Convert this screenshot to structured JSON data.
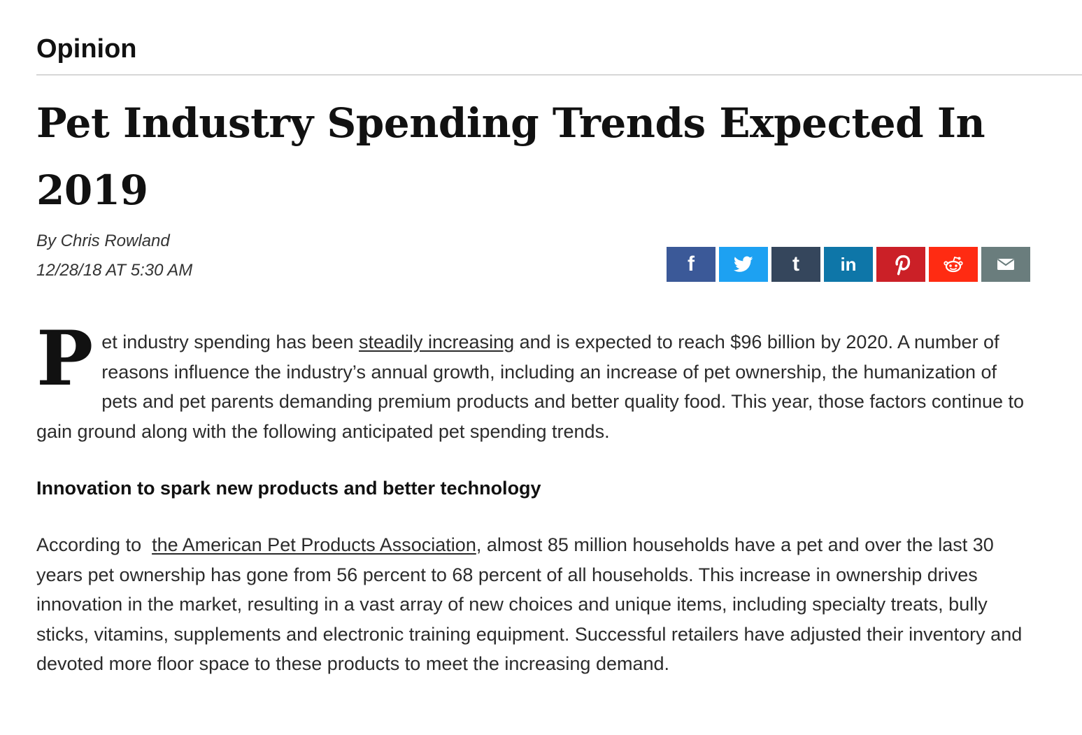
{
  "section": "Opinion",
  "headline": "Pet Industry Spending Trends Expected In 2019",
  "byline": "By Chris Rowland",
  "dateline": "12/28/18 AT 5:30 AM",
  "share": {
    "facebook": {
      "glyph": "f",
      "color": "#3b5998"
    },
    "twitter": {
      "color": "#1da1f2"
    },
    "tumblr": {
      "glyph": "t",
      "color": "#35465c"
    },
    "linkedin": {
      "glyph": "in",
      "color": "#0e76a8"
    },
    "pinterest": {
      "glyph": "P",
      "color": "#cb2027"
    },
    "reddit": {
      "color": "#ff2b12"
    },
    "email": {
      "color": "#6a7d7d"
    }
  },
  "lead": {
    "dropcap": "P",
    "text_before": "et industry spending has been ",
    "link": "steadily increasing",
    "text_after": " and is expected to reach $96 billion by 2020. A number of reasons influence the industry’s annual growth, including an increase of pet ownership, the humanization of pets and pet parents demanding premium products and better quality food. This year, those factors continue to gain ground along with the following anticipated pet spending trends."
  },
  "subhead": "Innovation to spark new products and better technology",
  "para2": {
    "text_before": "According to  ",
    "link": "the American Pet Products Association",
    "text_after": ", almost 85 million households have a pet and over the last 30 years pet ownership has gone from 56 percent to 68 percent of all households. This increase in ownership drives innovation in the market, resulting in a vast array of new choices and unique items, including specialty treats, bully sticks, vitamins, supplements and electronic training equipment. Successful retailers have adjusted their inventory and devoted more floor space to these products to meet the increasing demand."
  }
}
